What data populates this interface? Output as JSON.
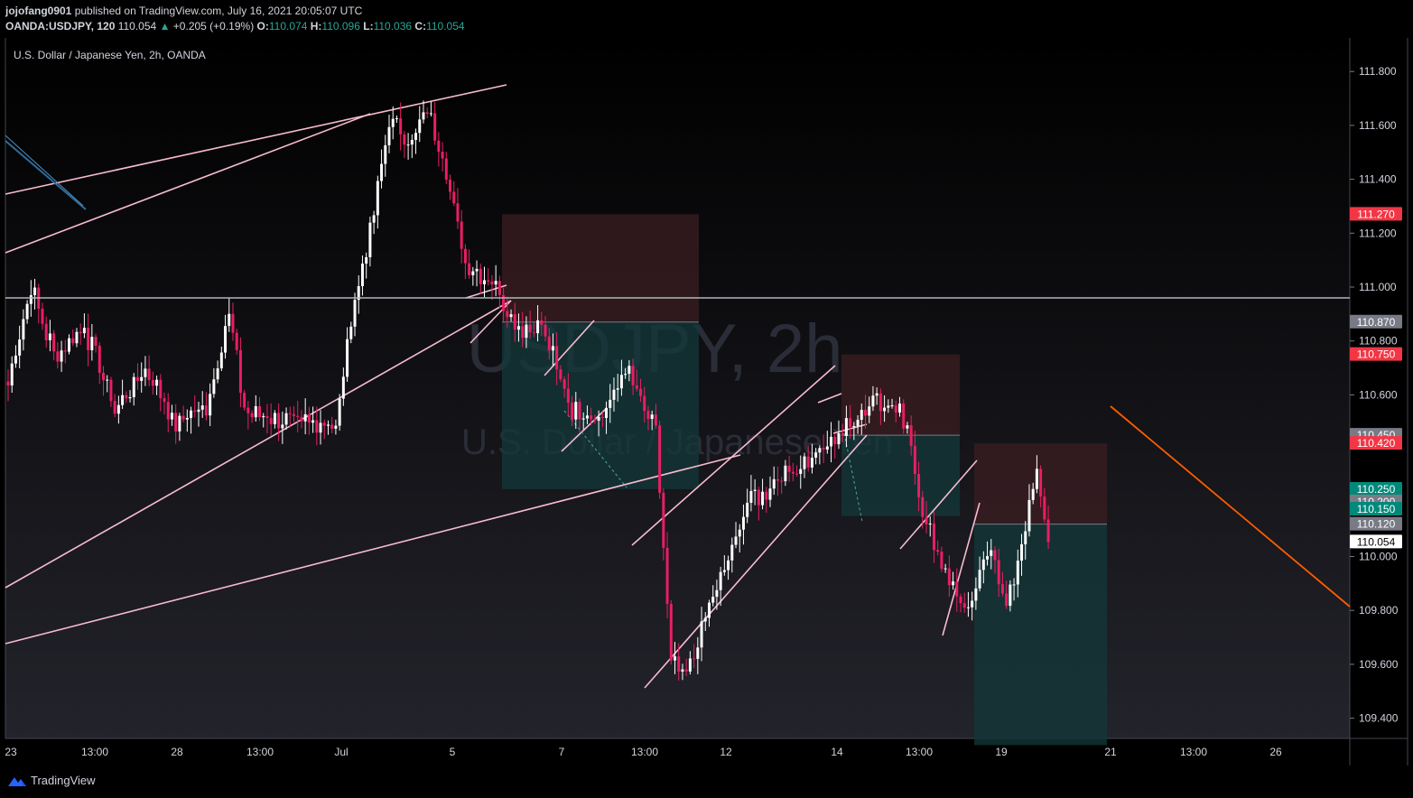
{
  "header": {
    "user": "jojofang0901",
    "published": "published on TradingView.com, July 16, 2021 20:05:07 UTC",
    "symbol": "OANDA:USDJPY, 120",
    "last": "110.054",
    "arrow": "▲",
    "change": "+0.205 (+0.19%)",
    "o_label": "O:",
    "o": "110.074",
    "h_label": "H:",
    "h": "110.096",
    "l_label": "L:",
    "l": "110.036",
    "c_label": "C:",
    "c": "110.054"
  },
  "legend_title": "U.S. Dollar / Japanese Yen, 2h, OANDA",
  "watermark": {
    "big": "USDJPY, 2h",
    "small": "U.S. Dollar / Japanese Yen"
  },
  "footer": {
    "brand": "TradingView",
    "logo_icon": "tradingview-logo-icon"
  },
  "colors": {
    "up": "#ffffff",
    "down": "#e91e63",
    "trendline": "#f8bbd0",
    "orange": "#ff5d00",
    "stop_zone": "#3b1e22",
    "target_zone": "#13383a",
    "accent_green": "#00897b",
    "accent_red": "#f23645"
  },
  "chart_data": {
    "type": "candlestick",
    "title": "U.S. Dollar / Japanese Yen, 2h, OANDA",
    "ylim": [
      109.3,
      111.9
    ],
    "y_ticks": [
      "111.800",
      "111.600",
      "111.400",
      "111.200",
      "111.000",
      "110.800",
      "110.600",
      "110.000",
      "109.800",
      "109.600",
      "109.400"
    ],
    "x_tick_labels": [
      "23",
      "13:00",
      "28",
      "13:00",
      "Jul",
      "5",
      "7",
      "13:00",
      "12",
      "14",
      "13:00",
      "19",
      "21",
      "13:00",
      "26"
    ],
    "horizontal_line": 110.96,
    "price_labels": [
      {
        "text": "111.270",
        "value": 111.27,
        "color": "#f23645"
      },
      {
        "text": "110.870",
        "value": 110.87,
        "color": "#787b86"
      },
      {
        "text": "110.750",
        "value": 110.75,
        "color": "#f23645"
      },
      {
        "text": "110.450",
        "value": 110.45,
        "color": "#787b86"
      },
      {
        "text": "110.420",
        "value": 110.42,
        "color": "#f23645"
      },
      {
        "text": "110.250",
        "value": 110.25,
        "color": "#00897b"
      },
      {
        "text": "110.200",
        "value": 110.2,
        "color": "#787b86"
      },
      {
        "text": "110.150",
        "value": 110.15,
        "color": "#00897b"
      },
      {
        "text": "110.120",
        "value": 110.12,
        "color": "#787b86"
      },
      {
        "text": "110.054",
        "value": 110.054,
        "color": "#ffffff"
      }
    ],
    "anchors": [
      {
        "bar": 0,
        "price": 110.65
      },
      {
        "bar": 6,
        "price": 111.0
      },
      {
        "bar": 12,
        "price": 110.75
      },
      {
        "bar": 20,
        "price": 110.85
      },
      {
        "bar": 28,
        "price": 110.55
      },
      {
        "bar": 36,
        "price": 110.7
      },
      {
        "bar": 44,
        "price": 110.5
      },
      {
        "bar": 52,
        "price": 110.55
      },
      {
        "bar": 58,
        "price": 110.9
      },
      {
        "bar": 62,
        "price": 110.55
      },
      {
        "bar": 72,
        "price": 110.5
      },
      {
        "bar": 80,
        "price": 110.5
      },
      {
        "bar": 86,
        "price": 110.48
      },
      {
        "bar": 90,
        "price": 110.9
      },
      {
        "bar": 94,
        "price": 111.13
      },
      {
        "bar": 100,
        "price": 111.6
      },
      {
        "bar": 106,
        "price": 111.55
      },
      {
        "bar": 110,
        "price": 111.65
      },
      {
        "bar": 114,
        "price": 111.5
      },
      {
        "bar": 120,
        "price": 111.1
      },
      {
        "bar": 128,
        "price": 111.0
      },
      {
        "bar": 134,
        "price": 110.85
      },
      {
        "bar": 140,
        "price": 110.85
      },
      {
        "bar": 148,
        "price": 110.55
      },
      {
        "bar": 156,
        "price": 110.52
      },
      {
        "bar": 162,
        "price": 110.7
      },
      {
        "bar": 170,
        "price": 110.45
      },
      {
        "bar": 174,
        "price": 109.6
      },
      {
        "bar": 178,
        "price": 109.55
      },
      {
        "bar": 184,
        "price": 109.8
      },
      {
        "bar": 194,
        "price": 110.2
      },
      {
        "bar": 204,
        "price": 110.3
      },
      {
        "bar": 214,
        "price": 110.4
      },
      {
        "bar": 222,
        "price": 110.5
      },
      {
        "bar": 228,
        "price": 110.6
      },
      {
        "bar": 236,
        "price": 110.5
      },
      {
        "bar": 240,
        "price": 110.15
      },
      {
        "bar": 246,
        "price": 109.95
      },
      {
        "bar": 252,
        "price": 109.78
      },
      {
        "bar": 258,
        "price": 110.05
      },
      {
        "bar": 262,
        "price": 109.8
      },
      {
        "bar": 266,
        "price": 110.05
      },
      {
        "bar": 270,
        "price": 110.3
      },
      {
        "bar": 273,
        "price": 110.054
      }
    ],
    "bars_total_visible": 274
  }
}
